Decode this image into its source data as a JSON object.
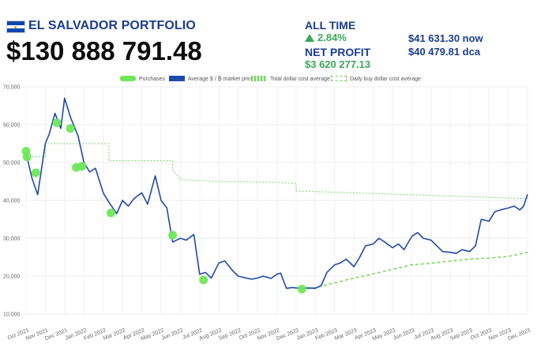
{
  "header": {
    "title": "EL SALVADOR PORTFOLIO",
    "total_value": "$130 888 791.48",
    "all_time_label": "ALL TIME",
    "all_time_change": "2.84%",
    "net_profit_label": "NET PROFIT",
    "net_profit_value": "$3 620 277.13",
    "price_now": "$41 631.30 now",
    "price_dca": "$40 479.81 dca"
  },
  "colors": {
    "brand_blue": "#1b3d8f",
    "price_line": "#1f4aa8",
    "purchase_dot": "#6ee85a",
    "total_dca": "#7fcf6a",
    "daily_dca": "#6fd34f",
    "gain_green": "#3aa757"
  },
  "icons": {
    "flag": "el-salvador-flag-icon",
    "up_arrow": "up-arrow-icon"
  },
  "legend": [
    {
      "label": "Purchases",
      "type": "dot"
    },
    {
      "label": "Average $ / ₿ market price",
      "type": "line"
    },
    {
      "label": "Total dollar cost average",
      "type": "dotted-area"
    },
    {
      "label": "Daily buy dollar cost average",
      "type": "dashed"
    }
  ],
  "chart_data": {
    "type": "line",
    "ylim": [
      10000,
      70000
    ],
    "y_ticks": [
      "10,000",
      "20,000",
      "30,000",
      "40,000",
      "50,000",
      "60,000",
      "70,000"
    ],
    "x_ticks": [
      "Oct 2021",
      "Nov 2021",
      "Dec 2021",
      "Jan 2022",
      "Feb 2022",
      "Mar 2022",
      "Apr 2022",
      "May 2022",
      "Jun 2022",
      "Jul 2022",
      "Aug 2022",
      "Sep 2022",
      "Oct 2022",
      "Nov 2022",
      "Dec 2022",
      "Jan 2023",
      "Feb 2023",
      "Mar 2023",
      "Apr 2023",
      "May 2023",
      "Jun 2023",
      "Jul 2023",
      "Aug 2023",
      "Sep 2023",
      "Oct 2023",
      "Nov 2023",
      "Dec 2023"
    ],
    "grid": true,
    "legend_position": "top",
    "series": [
      {
        "name": "Average $ / ₿ market price",
        "style": "line",
        "x": [
          0,
          0.3,
          0.6,
          1.0,
          1.2,
          1.5,
          1.8,
          2.0,
          2.3,
          2.7,
          3.0,
          3.3,
          3.6,
          4.0,
          4.3,
          4.7,
          5.0,
          5.3,
          5.6,
          6.0,
          6.3,
          6.7,
          7.0,
          7.3,
          7.6,
          8.0,
          8.3,
          8.7,
          9.0,
          9.3,
          9.6,
          10.0,
          10.3,
          10.7,
          11.0,
          11.4,
          11.7,
          12.0,
          12.3,
          12.7,
          13.0,
          13.2,
          13.5,
          13.8,
          14.0,
          14.3,
          14.6,
          15.0,
          15.3,
          15.6,
          16.0,
          16.3,
          16.6,
          17.0,
          17.3,
          17.6,
          18.0,
          18.3,
          18.6,
          19.0,
          19.3,
          19.6,
          20.0,
          20.3,
          20.6,
          21.0,
          21.3,
          21.6,
          22.0,
          22.3,
          22.6,
          23.0,
          23.3,
          23.6,
          24.0,
          24.3,
          24.6,
          25.0,
          25.3,
          25.6,
          25.8,
          26.0
        ],
        "y": [
          52500,
          46000,
          41500,
          55000,
          57500,
          63000,
          59000,
          67000,
          62000,
          57000,
          50000,
          47500,
          48500,
          42000,
          39500,
          36500,
          40000,
          38500,
          40500,
          42000,
          39000,
          46500,
          40000,
          38000,
          29000,
          30000,
          29500,
          31000,
          20500,
          21000,
          19500,
          23500,
          24000,
          21500,
          20000,
          19500,
          19200,
          19500,
          20000,
          19400,
          20500,
          20800,
          16800,
          17000,
          16900,
          16800,
          16900,
          16800,
          17500,
          21000,
          23000,
          23500,
          24500,
          22500,
          25000,
          28000,
          28500,
          30000,
          29000,
          27500,
          28500,
          27000,
          30500,
          31500,
          30000,
          29500,
          28000,
          26500,
          26300,
          26000,
          27000,
          26500,
          28000,
          35000,
          34500,
          37000,
          37500,
          38000,
          38500,
          37500,
          38500,
          41600
        ]
      },
      {
        "name": "Total dollar cost average",
        "style": "dotted-step",
        "x": [
          0,
          1.0,
          1.0,
          4.3,
          4.3,
          7.6,
          7.6,
          8.0,
          8.0,
          10.0,
          13.0,
          14.0,
          14.0,
          26.0
        ],
        "y": [
          51500,
          51500,
          55000,
          55000,
          50500,
          50500,
          48000,
          45800,
          45500,
          45000,
          44800,
          44500,
          42500,
          40480
        ]
      },
      {
        "name": "Daily buy dollar cost average",
        "style": "dashed",
        "x": [
          14.3,
          15.0,
          16.0,
          17.0,
          18.0,
          19.0,
          20.0,
          21.0,
          22.0,
          23.0,
          24.0,
          25.0,
          26.0
        ],
        "y": [
          16500,
          17000,
          18200,
          19500,
          20600,
          21800,
          23000,
          23400,
          24000,
          24500,
          24800,
          25200,
          26300
        ]
      }
    ],
    "purchases": {
      "name": "Purchases",
      "x": [
        0,
        0.05,
        0.5,
        1.6,
        2.3,
        2.6,
        2.9,
        4.4,
        7.6,
        9.2,
        14.3
      ],
      "y": [
        53000,
        51500,
        47300,
        60500,
        59000,
        48700,
        49000,
        36700,
        30800,
        19000,
        16600
      ]
    }
  }
}
